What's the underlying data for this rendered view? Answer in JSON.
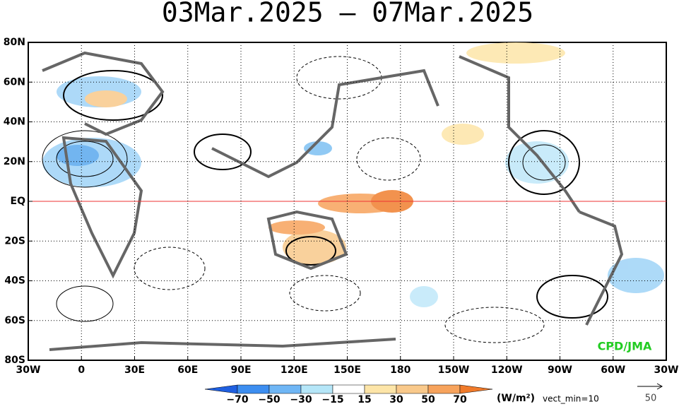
{
  "header": {
    "title": "03Mar.2025 – 07Mar.2025"
  },
  "map": {
    "x_labels": [
      "30W",
      "0",
      "30E",
      "60E",
      "90E",
      "120E",
      "150E",
      "180",
      "150W",
      "120W",
      "90W",
      "60W",
      "30W"
    ],
    "y_labels": [
      "80N",
      "60N",
      "40N",
      "20N",
      "EQ",
      "20S",
      "40S",
      "60S",
      "80S"
    ],
    "credit": "CPD/JMA"
  },
  "colorbar": {
    "labels": [
      "−70",
      "−50",
      "−30",
      "−15",
      "15",
      "30",
      "50",
      "70"
    ],
    "units": "(W/m²)",
    "vector_note": "vect_min=10",
    "reference_vector": "50"
  }
}
